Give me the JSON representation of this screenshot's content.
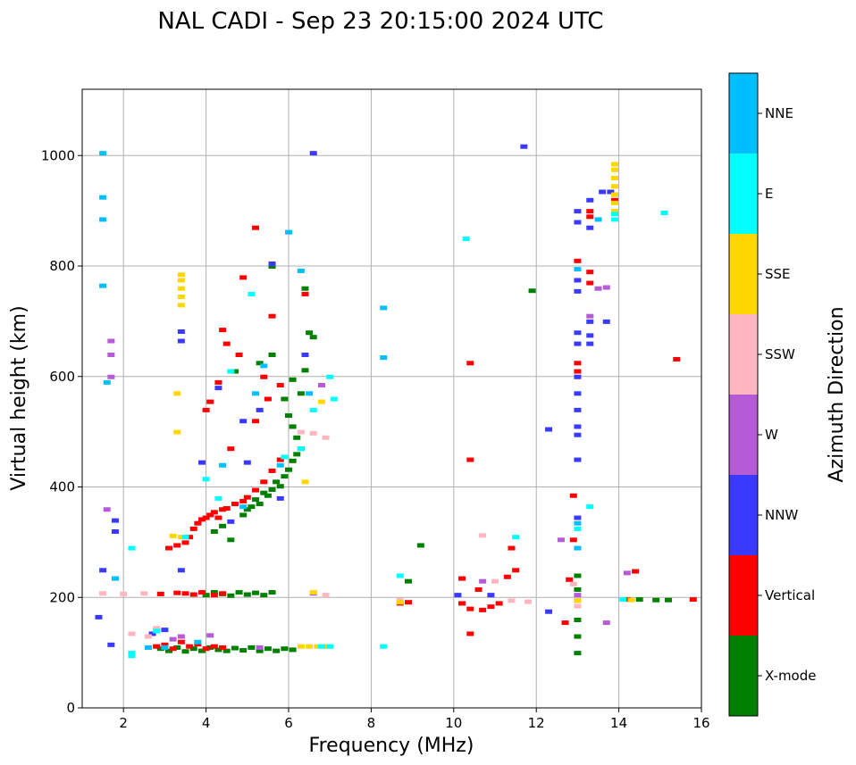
{
  "chart_data": {
    "type": "scatter",
    "title": "NAL CADI - Sep 23 20:15:00 2024 UTC",
    "xlabel": "Frequency (MHz)",
    "ylabel": "Virtual height (km)",
    "xlim": [
      1,
      16
    ],
    "ylim": [
      0,
      1120
    ],
    "xticks": [
      2,
      4,
      6,
      8,
      10,
      12,
      14,
      16
    ],
    "yticks": [
      0,
      200,
      400,
      600,
      800,
      1000
    ],
    "grid": true,
    "colorbar": {
      "label": "Azimuth Direction",
      "categories": [
        "X-mode",
        "Vertical",
        "NNW",
        "W",
        "SSW",
        "SSE",
        "E",
        "NNE"
      ],
      "colors": [
        "#008000",
        "#ff0000",
        "#3a3aff",
        "#b65bd6",
        "#ffb6c1",
        "#ffd700",
        "#00ffff",
        "#00bfff"
      ]
    },
    "series": [
      {
        "name": "X-mode",
        "color": "#008000",
        "points": [
          [
            2.9,
            108
          ],
          [
            3.1,
            104
          ],
          [
            3.3,
            110
          ],
          [
            3.5,
            103
          ],
          [
            3.7,
            108
          ],
          [
            3.9,
            104
          ],
          [
            4.1,
            110
          ],
          [
            4.3,
            106
          ],
          [
            4.5,
            104
          ],
          [
            4.7,
            109
          ],
          [
            4.9,
            105
          ],
          [
            5.1,
            110
          ],
          [
            5.3,
            104
          ],
          [
            5.5,
            108
          ],
          [
            5.7,
            104
          ],
          [
            5.9,
            108
          ],
          [
            6.1,
            106
          ],
          [
            4.0,
            205
          ],
          [
            4.2,
            210
          ],
          [
            4.4,
            207
          ],
          [
            4.6,
            204
          ],
          [
            4.8,
            210
          ],
          [
            5.0,
            206
          ],
          [
            5.2,
            209
          ],
          [
            5.4,
            205
          ],
          [
            5.6,
            210
          ],
          [
            4.2,
            320
          ],
          [
            4.4,
            330
          ],
          [
            4.6,
            305
          ],
          [
            4.9,
            350
          ],
          [
            5.0,
            360
          ],
          [
            5.1,
            365
          ],
          [
            5.2,
            378
          ],
          [
            5.3,
            370
          ],
          [
            5.4,
            390
          ],
          [
            5.5,
            385
          ],
          [
            5.6,
            396
          ],
          [
            5.7,
            410
          ],
          [
            5.8,
            402
          ],
          [
            5.9,
            420
          ],
          [
            6.0,
            432
          ],
          [
            6.1,
            448
          ],
          [
            6.2,
            460
          ],
          [
            6.3,
            470
          ],
          [
            6.2,
            490
          ],
          [
            6.1,
            510
          ],
          [
            6.0,
            530
          ],
          [
            6.3,
            570
          ],
          [
            6.1,
            595
          ],
          [
            6.4,
            612
          ],
          [
            6.5,
            680
          ],
          [
            6.6,
            672
          ],
          [
            5.6,
            640
          ],
          [
            5.3,
            625
          ],
          [
            6.4,
            760
          ],
          [
            5.6,
            800
          ],
          [
            4.7,
            610
          ],
          [
            5.9,
            560
          ],
          [
            13.0,
            100
          ],
          [
            13.0,
            130
          ],
          [
            13.0,
            160
          ],
          [
            13.0,
            215
          ],
          [
            13.0,
            240
          ],
          [
            14.5,
            197
          ],
          [
            14.9,
            196
          ],
          [
            15.2,
            196
          ],
          [
            8.9,
            230
          ],
          [
            9.2,
            295
          ],
          [
            11.9,
            756
          ]
        ]
      },
      {
        "name": "Vertical",
        "color": "#ff0000",
        "points": [
          [
            2.8,
            112
          ],
          [
            3.0,
            115
          ],
          [
            3.2,
            108
          ],
          [
            3.4,
            120
          ],
          [
            3.6,
            112
          ],
          [
            3.8,
            116
          ],
          [
            4.0,
            108
          ],
          [
            4.2,
            112
          ],
          [
            4.4,
            110
          ],
          [
            2.9,
            207
          ],
          [
            3.3,
            209
          ],
          [
            3.5,
            208
          ],
          [
            3.7,
            206
          ],
          [
            3.9,
            210
          ],
          [
            4.2,
            205
          ],
          [
            4.4,
            208
          ],
          [
            3.1,
            290
          ],
          [
            3.3,
            295
          ],
          [
            3.5,
            300
          ],
          [
            3.6,
            310
          ],
          [
            3.7,
            325
          ],
          [
            3.8,
            335
          ],
          [
            3.9,
            342
          ],
          [
            4.0,
            345
          ],
          [
            4.1,
            350
          ],
          [
            4.2,
            355
          ],
          [
            4.3,
            345
          ],
          [
            4.4,
            360
          ],
          [
            4.5,
            362
          ],
          [
            4.7,
            370
          ],
          [
            4.9,
            375
          ],
          [
            5.0,
            382
          ],
          [
            5.2,
            395
          ],
          [
            5.4,
            410
          ],
          [
            5.6,
            430
          ],
          [
            5.8,
            450
          ],
          [
            5.2,
            520
          ],
          [
            5.5,
            560
          ],
          [
            5.8,
            585
          ],
          [
            4.6,
            470
          ],
          [
            4.1,
            555
          ],
          [
            4.0,
            540
          ],
          [
            4.3,
            590
          ],
          [
            4.5,
            660
          ],
          [
            4.8,
            640
          ],
          [
            5.4,
            600
          ],
          [
            5.6,
            710
          ],
          [
            4.9,
            780
          ],
          [
            6.4,
            750
          ],
          [
            5.2,
            870
          ],
          [
            4.4,
            685
          ],
          [
            8.9,
            192
          ],
          [
            8.7,
            190
          ],
          [
            10.2,
            190
          ],
          [
            10.4,
            180
          ],
          [
            10.7,
            178
          ],
          [
            10.9,
            184
          ],
          [
            11.1,
            190
          ],
          [
            11.3,
            238
          ],
          [
            10.2,
            235
          ],
          [
            10.6,
            215
          ],
          [
            10.4,
            135
          ],
          [
            10.4,
            450
          ],
          [
            10.4,
            625
          ],
          [
            11.4,
            290
          ],
          [
            11.5,
            250
          ],
          [
            12.7,
            155
          ],
          [
            12.8,
            233
          ],
          [
            12.9,
            305
          ],
          [
            12.9,
            385
          ],
          [
            13.0,
            610
          ],
          [
            13.0,
            625
          ],
          [
            13.3,
            890
          ],
          [
            13.3,
            900
          ],
          [
            13.3,
            790
          ],
          [
            13.3,
            770
          ],
          [
            13.0,
            810
          ],
          [
            13.9,
            930
          ],
          [
            13.9,
            920
          ],
          [
            14.4,
            248
          ],
          [
            14.2,
            197
          ],
          [
            15.4,
            632
          ],
          [
            15.8,
            197
          ]
        ]
      },
      {
        "name": "NNW",
        "color": "#3a3aff",
        "points": [
          [
            1.5,
            250
          ],
          [
            1.8,
            320
          ],
          [
            1.8,
            340
          ],
          [
            1.4,
            165
          ],
          [
            1.7,
            115
          ],
          [
            2.7,
            135
          ],
          [
            3.0,
            142
          ],
          [
            3.4,
            682
          ],
          [
            3.4,
            665
          ],
          [
            3.4,
            250
          ],
          [
            3.9,
            445
          ],
          [
            4.3,
            580
          ],
          [
            4.6,
            338
          ],
          [
            4.9,
            520
          ],
          [
            5.0,
            445
          ],
          [
            5.3,
            540
          ],
          [
            5.6,
            805
          ],
          [
            6.6,
            1005
          ],
          [
            6.4,
            640
          ],
          [
            5.8,
            380
          ],
          [
            10.1,
            205
          ],
          [
            10.9,
            205
          ],
          [
            11.7,
            1017
          ],
          [
            12.3,
            505
          ],
          [
            12.3,
            175
          ],
          [
            13.0,
            345
          ],
          [
            13.0,
            450
          ],
          [
            13.0,
            495
          ],
          [
            13.0,
            510
          ],
          [
            13.0,
            540
          ],
          [
            13.0,
            570
          ],
          [
            13.0,
            600
          ],
          [
            13.0,
            660
          ],
          [
            13.0,
            680
          ],
          [
            13.0,
            755
          ],
          [
            13.0,
            775
          ],
          [
            13.0,
            880
          ],
          [
            13.0,
            900
          ],
          [
            13.3,
            920
          ],
          [
            13.3,
            870
          ],
          [
            13.3,
            700
          ],
          [
            13.3,
            675
          ],
          [
            13.3,
            660
          ],
          [
            13.7,
            700
          ],
          [
            13.6,
            935
          ],
          [
            13.8,
            935
          ]
        ]
      },
      {
        "name": "W",
        "color": "#b65bd6",
        "points": [
          [
            1.7,
            600
          ],
          [
            1.7,
            640
          ],
          [
            1.7,
            665
          ],
          [
            1.6,
            360
          ],
          [
            3.2,
            125
          ],
          [
            3.4,
            130
          ],
          [
            4.1,
            132
          ],
          [
            5.3,
            110
          ],
          [
            6.8,
            585
          ],
          [
            6.6,
            208
          ],
          [
            10.7,
            230
          ],
          [
            13.0,
            195
          ],
          [
            13.0,
            205
          ],
          [
            13.3,
            710
          ],
          [
            13.5,
            760
          ],
          [
            13.7,
            762
          ],
          [
            13.7,
            155
          ],
          [
            14.2,
            245
          ],
          [
            12.6,
            305
          ]
        ]
      },
      {
        "name": "SSW",
        "color": "#ffb6c1",
        "points": [
          [
            1.5,
            208
          ],
          [
            2.0,
            207
          ],
          [
            2.5,
            208
          ],
          [
            2.2,
            135
          ],
          [
            2.6,
            130
          ],
          [
            2.8,
            145
          ],
          [
            6.9,
            205
          ],
          [
            6.3,
            500
          ],
          [
            6.6,
            498
          ],
          [
            6.9,
            490
          ],
          [
            8.7,
            196
          ],
          [
            10.7,
            313
          ],
          [
            11.0,
            230
          ],
          [
            11.4,
            195
          ],
          [
            11.8,
            193
          ],
          [
            12.9,
            225
          ],
          [
            13.0,
            185
          ]
        ]
      },
      {
        "name": "SSE",
        "color": "#ffd700",
        "points": [
          [
            3.4,
            730
          ],
          [
            3.4,
            745
          ],
          [
            3.4,
            760
          ],
          [
            3.4,
            775
          ],
          [
            3.4,
            785
          ],
          [
            3.3,
            570
          ],
          [
            3.3,
            500
          ],
          [
            3.4,
            310
          ],
          [
            3.2,
            312
          ],
          [
            6.3,
            112
          ],
          [
            6.5,
            112
          ],
          [
            6.7,
            112
          ],
          [
            6.9,
            112
          ],
          [
            6.4,
            410
          ],
          [
            6.6,
            210
          ],
          [
            6.8,
            555
          ],
          [
            8.7,
            192
          ],
          [
            13.0,
            195
          ],
          [
            13.9,
            900
          ],
          [
            13.9,
            915
          ],
          [
            13.9,
            930
          ],
          [
            13.9,
            945
          ],
          [
            13.9,
            960
          ],
          [
            13.9,
            975
          ],
          [
            13.9,
            985
          ],
          [
            14.3,
            196
          ]
        ]
      },
      {
        "name": "E",
        "color": "#00ffff",
        "points": [
          [
            2.2,
            95
          ],
          [
            2.2,
            100
          ],
          [
            2.2,
            290
          ],
          [
            2.8,
            140
          ],
          [
            3.5,
            310
          ],
          [
            4.0,
            415
          ],
          [
            4.3,
            380
          ],
          [
            4.6,
            610
          ],
          [
            5.1,
            750
          ],
          [
            6.8,
            112
          ],
          [
            7.0,
            112
          ],
          [
            7.1,
            560
          ],
          [
            7.0,
            600
          ],
          [
            6.6,
            540
          ],
          [
            6.3,
            470
          ],
          [
            5.9,
            455
          ],
          [
            8.3,
            112
          ],
          [
            8.7,
            240
          ],
          [
            10.3,
            850
          ],
          [
            11.5,
            310
          ],
          [
            13.0,
            325
          ],
          [
            13.3,
            365
          ],
          [
            13.9,
            885
          ],
          [
            13.9,
            895
          ],
          [
            15.1,
            897
          ],
          [
            14.1,
            197
          ]
        ]
      },
      {
        "name": "NNE",
        "color": "#00bfff",
        "points": [
          [
            1.5,
            1005
          ],
          [
            1.5,
            925
          ],
          [
            1.5,
            885
          ],
          [
            1.5,
            765
          ],
          [
            1.6,
            590
          ],
          [
            1.8,
            235
          ],
          [
            2.6,
            110
          ],
          [
            3.0,
            110
          ],
          [
            3.8,
            120
          ],
          [
            4.4,
            440
          ],
          [
            4.9,
            365
          ],
          [
            5.2,
            570
          ],
          [
            5.4,
            620
          ],
          [
            5.8,
            440
          ],
          [
            6.0,
            862
          ],
          [
            6.3,
            792
          ],
          [
            6.5,
            570
          ],
          [
            8.3,
            725
          ],
          [
            8.3,
            635
          ],
          [
            13.0,
            290
          ],
          [
            13.0,
            335
          ],
          [
            13.5,
            885
          ],
          [
            13.0,
            795
          ]
        ]
      }
    ]
  }
}
